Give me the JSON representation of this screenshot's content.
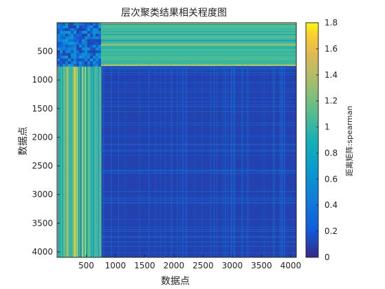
{
  "chart_data": {
    "type": "heatmap",
    "title": "层次聚类结果相关程度图",
    "xlabel": "数据点",
    "ylabel": "数据点",
    "xlim": [
      1,
      4096
    ],
    "ylim": [
      1,
      4096
    ],
    "y_reversed": true,
    "x_ticks": [
      500,
      1000,
      1500,
      2000,
      2500,
      3000,
      3500,
      4000
    ],
    "y_ticks": [
      500,
      1000,
      1500,
      2000,
      2500,
      3000,
      3500,
      4000
    ],
    "colormap": "parula",
    "colorbar": {
      "label": "距离矩阵:spearman",
      "range": [
        0,
        1.8
      ],
      "ticks": [
        0,
        0.2,
        0.4,
        0.6,
        0.8,
        1,
        1.2,
        1.4,
        1.6,
        1.8
      ]
    },
    "blocks": [
      {
        "x_range": [
          1,
          750
        ],
        "y_range": [
          1,
          750
        ],
        "approx_value": 0.35
      },
      {
        "x_range": [
          750,
          4096
        ],
        "y_range": [
          1,
          750
        ],
        "approx_value": 1.05
      },
      {
        "x_range": [
          1,
          750
        ],
        "y_range": [
          750,
          4096
        ],
        "approx_value": 1.05
      },
      {
        "x_range": [
          750,
          4096
        ],
        "y_range": [
          750,
          4096
        ],
        "approx_value": 0.1
      }
    ],
    "cluster_boundary": 750
  }
}
